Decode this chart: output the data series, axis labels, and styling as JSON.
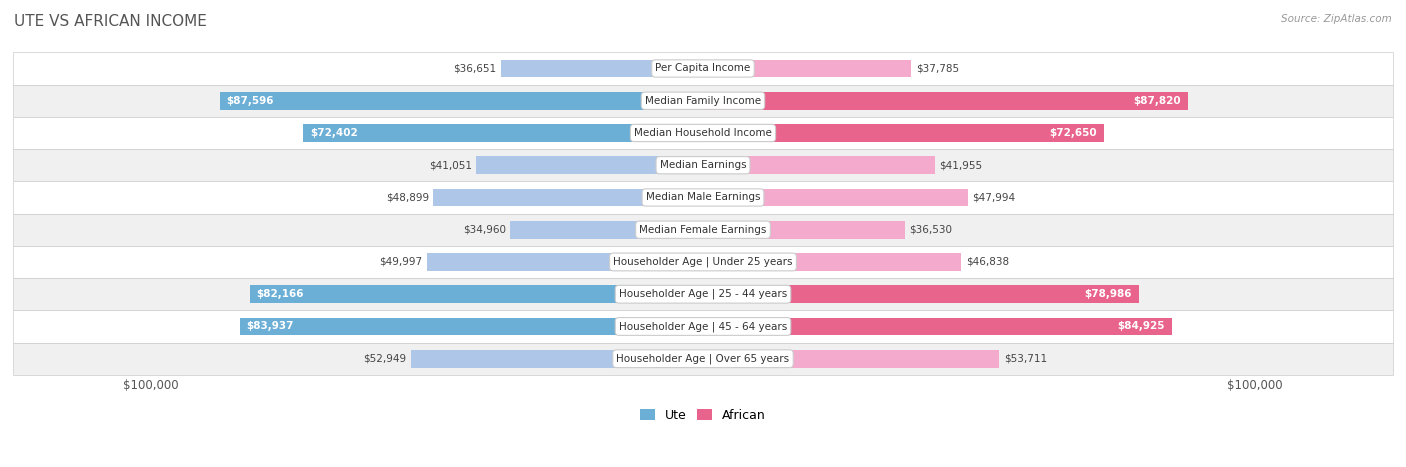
{
  "title": "UTE VS AFRICAN INCOME",
  "source": "Source: ZipAtlas.com",
  "categories": [
    "Per Capita Income",
    "Median Family Income",
    "Median Household Income",
    "Median Earnings",
    "Median Male Earnings",
    "Median Female Earnings",
    "Householder Age | Under 25 years",
    "Householder Age | 25 - 44 years",
    "Householder Age | 45 - 64 years",
    "Householder Age | Over 65 years"
  ],
  "ute_values": [
    36651,
    87596,
    72402,
    41051,
    48899,
    34960,
    49997,
    82166,
    83937,
    52949
  ],
  "african_values": [
    37785,
    87820,
    72650,
    41955,
    47994,
    36530,
    46838,
    78986,
    84925,
    53711
  ],
  "ute_labels": [
    "$36,651",
    "$87,596",
    "$72,402",
    "$41,051",
    "$48,899",
    "$34,960",
    "$49,997",
    "$82,166",
    "$83,937",
    "$52,949"
  ],
  "african_labels": [
    "$37,785",
    "$87,820",
    "$72,650",
    "$41,955",
    "$47,994",
    "$36,530",
    "$46,838",
    "$78,986",
    "$84,925",
    "$53,711"
  ],
  "max_value": 100000,
  "ute_color_light": "#aec6e8",
  "ute_color_dark": "#6baed6",
  "african_color_light": "#f4aacc",
  "african_color_dark": "#e8648c",
  "bg_color": "#ffffff",
  "row_bg_white": "#ffffff",
  "row_bg_gray": "#f0f0f0",
  "title_color": "#333333",
  "source_color": "#999999",
  "label_dark_color": "#ffffff",
  "label_light_color": "#555555",
  "large_threshold": 60000
}
